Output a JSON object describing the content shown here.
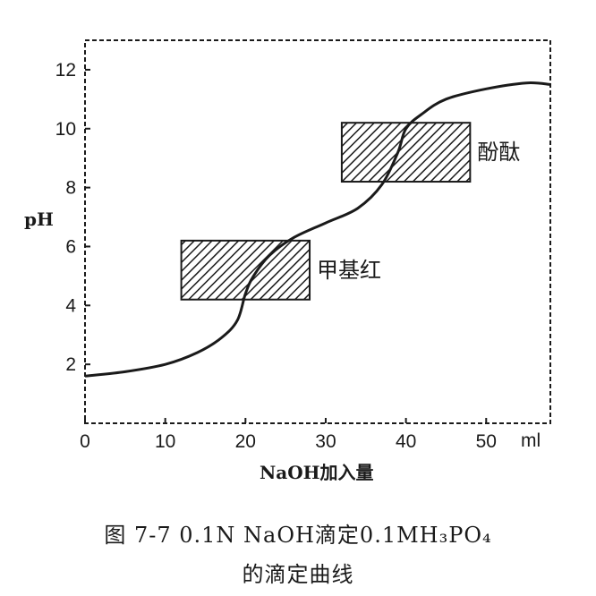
{
  "chart_data": {
    "type": "line",
    "xlabel": "NaOH加入量",
    "ylabel": "pH",
    "x_unit": "ml",
    "xlim": [
      0,
      58
    ],
    "ylim": [
      0,
      13
    ],
    "x_ticks": [
      0,
      10,
      20,
      30,
      40,
      50
    ],
    "x_tick_labels": [
      "0",
      "10",
      "20",
      "30",
      "40",
      "50"
    ],
    "y_ticks": [
      2,
      4,
      6,
      8,
      10,
      12
    ],
    "y_tick_labels": [
      "2",
      "4",
      "6",
      "8",
      "10",
      "12"
    ],
    "grid": false,
    "series": [
      {
        "x": [
          0,
          5,
          10,
          14,
          17,
          19,
          20,
          21,
          23,
          26,
          30,
          34,
          37,
          39,
          40,
          42,
          45,
          50,
          55,
          58
        ],
        "y": [
          1.6,
          1.75,
          2.0,
          2.4,
          2.9,
          3.5,
          4.4,
          5.0,
          5.7,
          6.3,
          6.8,
          7.3,
          8.1,
          9.2,
          10.0,
          10.5,
          11.0,
          11.35,
          11.55,
          11.5
        ]
      }
    ],
    "indicator_ranges": [
      {
        "name": "甲基红",
        "x_range": [
          12,
          28
        ],
        "y_range": [
          4.2,
          6.2
        ]
      },
      {
        "name": "酚酞",
        "x_range": [
          32,
          48
        ],
        "y_range": [
          8.2,
          10.2
        ]
      }
    ]
  },
  "caption": {
    "line1": "图 7-7   0.1N NaOH滴定0.1MH₃PO₄",
    "line2": "的滴定曲线"
  }
}
